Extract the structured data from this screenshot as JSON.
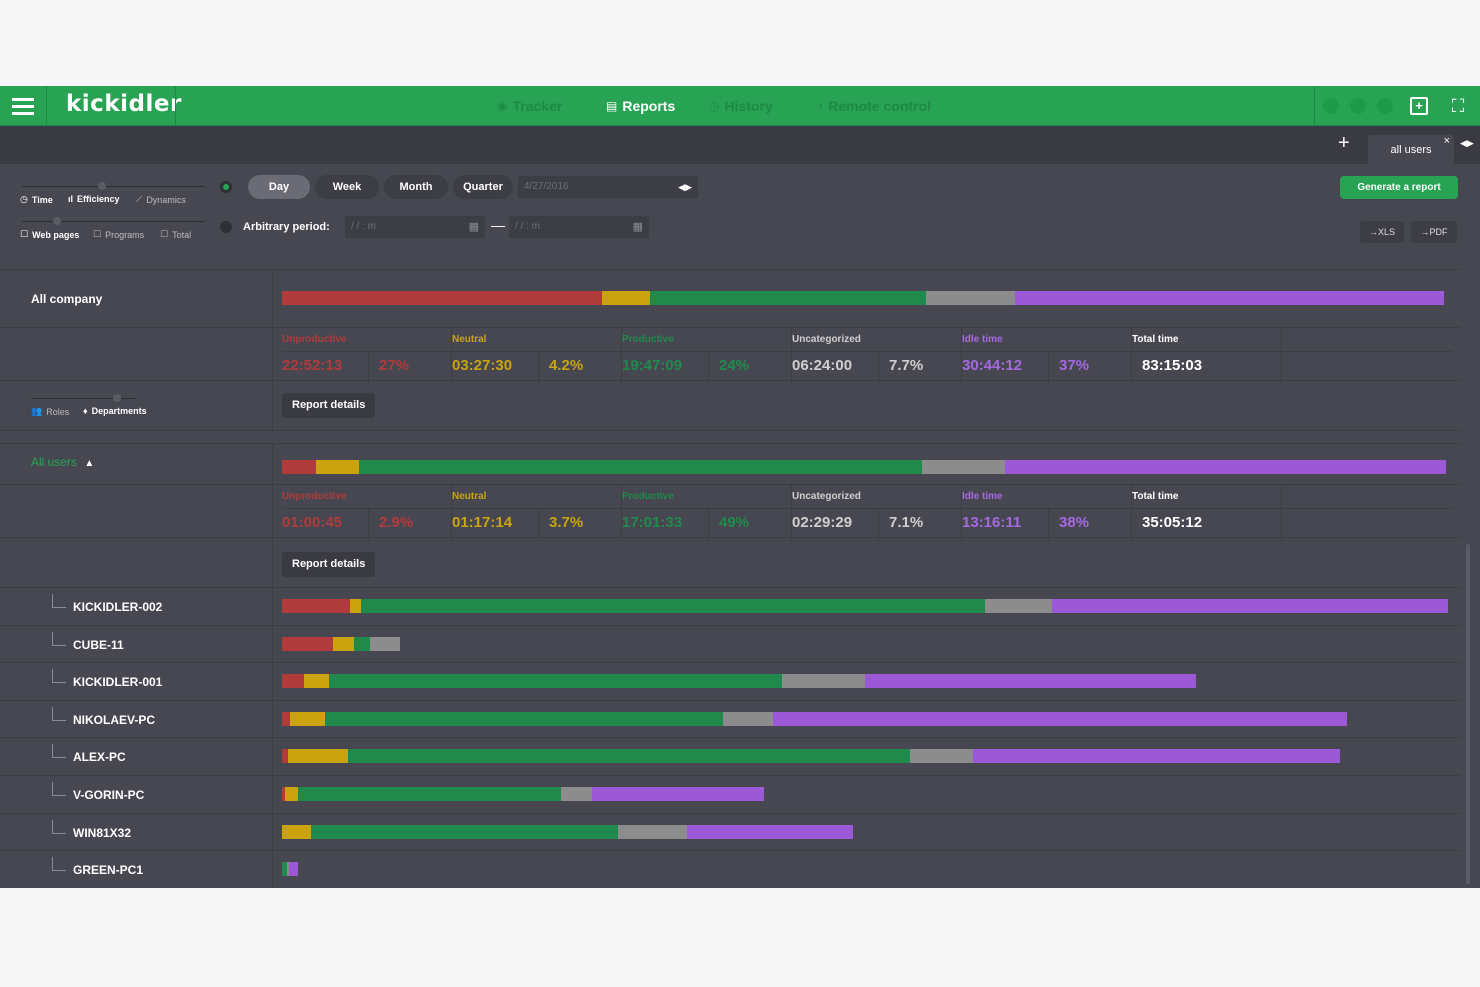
{
  "header": {
    "app_name": "kickidler",
    "nav": [
      {
        "label": "Tracker",
        "icon": "eye-icon",
        "active": false
      },
      {
        "label": "Reports",
        "icon": "document-icon",
        "active": true
      },
      {
        "label": "History",
        "icon": "history-icon",
        "active": false
      },
      {
        "label": "Remote control",
        "icon": "remote-icon",
        "active": false
      }
    ]
  },
  "tabs": {
    "add_label": "+",
    "active_tab": "all users",
    "close_label": "×"
  },
  "filters": {
    "metric_options": [
      "Time",
      "Efficiency",
      "Dynamics"
    ],
    "source_options": [
      "Web pages",
      "Programs",
      "Total"
    ],
    "periods": [
      "Day",
      "Week",
      "Month",
      "Quarter"
    ],
    "active_period": "Day",
    "date_value": "4/27/2016",
    "arbitrary_label": "Arbitrary period:",
    "from_placeholder": "/ /     : m",
    "to_placeholder": "/ /     : m",
    "period_separator": "—",
    "generate_label": "Generate a report",
    "export_xls": "→XLS",
    "export_pdf": "→PDF"
  },
  "colors": {
    "unproductive": "#b03b3b",
    "neutral": "#c9a40f",
    "productive": "#1f8a4c",
    "uncategorized": "#8c8c8c",
    "idle": "#9b59d6",
    "accent": "#27a353"
  },
  "company": {
    "label": "All company",
    "bar": [
      0.275,
      0.042,
      0.237,
      0.077,
      0.369
    ],
    "stats": [
      {
        "name": "Unproductive",
        "time": "22:52:13",
        "pct": "27%",
        "color": "#b03b3b"
      },
      {
        "name": "Neutral",
        "time": "03:27:30",
        "pct": "4.2%",
        "color": "#c9a40f"
      },
      {
        "name": "Productive",
        "time": "19:47:09",
        "pct": "24%",
        "color": "#1f8a4c"
      },
      {
        "name": "Uncategorized",
        "time": "06:24:00",
        "pct": "7.7%",
        "color": "#cfcfcf"
      },
      {
        "name": "Idle time",
        "time": "30:44:12",
        "pct": "37%",
        "color": "#a569e0"
      }
    ],
    "total_label": "Total time",
    "total": "83:15:03",
    "report_details": "Report details"
  },
  "grouping": {
    "roles": "Roles",
    "departments": "Departments"
  },
  "users": {
    "label": "All users",
    "bar": [
      0.029,
      0.037,
      0.484,
      0.071,
      0.379
    ],
    "stats": [
      {
        "name": "Unproductive",
        "time": "01:00:45",
        "pct": "2.9%",
        "color": "#b03b3b"
      },
      {
        "name": "Neutral",
        "time": "01:17:14",
        "pct": "3.7%",
        "color": "#c9a40f"
      },
      {
        "name": "Productive",
        "time": "17:01:33",
        "pct": "49%",
        "color": "#1f8a4c"
      },
      {
        "name": "Uncategorized",
        "time": "02:29:29",
        "pct": "7.1%",
        "color": "#cfcfcf"
      },
      {
        "name": "Idle time",
        "time": "13:16:11",
        "pct": "38%",
        "color": "#a569e0"
      }
    ],
    "total_label": "Total time",
    "total": "35:05:12",
    "report_details": "Report details"
  },
  "computers": [
    {
      "name": "KICKIDLER-002",
      "length": 1.0,
      "bar": [
        0.058,
        0.01,
        0.535,
        0.057,
        0.34
      ]
    },
    {
      "name": "CUBE-11",
      "length": 0.101,
      "bar": [
        0.432,
        0.178,
        0.136,
        0.254,
        0.0
      ]
    },
    {
      "name": "KICKIDLER-001",
      "length": 0.784,
      "bar": [
        0.019,
        0.022,
        0.398,
        0.073,
        0.291
      ]
    },
    {
      "name": "NIKOLAEV-PC",
      "length": 0.913,
      "bar": [
        0.007,
        0.03,
        0.341,
        0.043,
        0.492
      ]
    },
    {
      "name": "ALEX-PC",
      "length": 0.907,
      "bar": [
        0.005,
        0.052,
        0.482,
        0.054,
        0.314
      ]
    },
    {
      "name": "V-GORIN-PC",
      "length": 0.413,
      "bar": [
        0.003,
        0.011,
        0.225,
        0.027,
        0.147
      ]
    },
    {
      "name": "WIN81X32",
      "length": 0.49,
      "bar": [
        0.0,
        0.025,
        0.263,
        0.059,
        0.143
      ]
    },
    {
      "name": "GREEN-PC1",
      "length": 0.014,
      "bar": [
        0.0,
        0.0,
        0.004,
        0.002,
        0.008
      ]
    }
  ]
}
